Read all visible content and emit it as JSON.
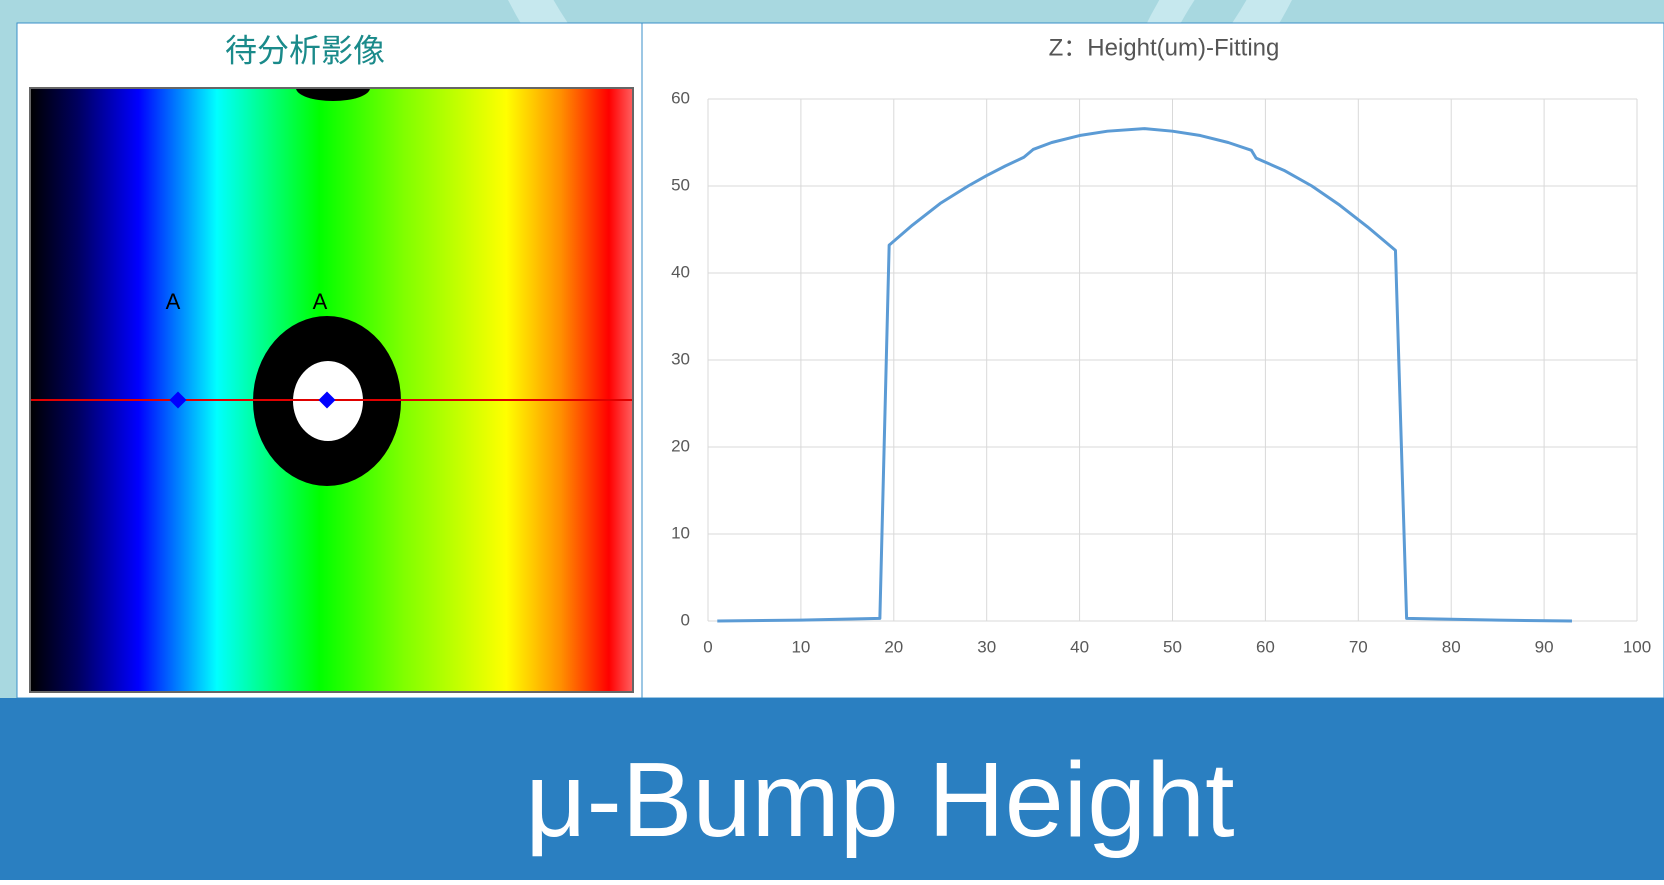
{
  "image_panel": {
    "title": "待分析影像",
    "labels": [
      "A",
      "A"
    ]
  },
  "chart_data": {
    "type": "line",
    "title": "Z：Height(um)-Fitting",
    "x": [
      1,
      10,
      18.5,
      19.5,
      22,
      25,
      28,
      30,
      32,
      34,
      35,
      37,
      40,
      43,
      47,
      50,
      53,
      56,
      58.5,
      59,
      62,
      65,
      68,
      71,
      74,
      75.2,
      80,
      85,
      93
    ],
    "values": [
      0,
      0.1,
      0.3,
      43.2,
      45.5,
      48,
      50,
      51.2,
      52.3,
      53.3,
      54.2,
      55,
      55.8,
      56.3,
      56.6,
      56.3,
      55.8,
      55,
      54.1,
      53.2,
      51.8,
      50,
      47.8,
      45.3,
      42.6,
      0.3,
      0.2,
      0.1,
      0
    ],
    "color": "#5b9bd5",
    "xlim": [
      0,
      100
    ],
    "xticks": [
      0,
      10,
      20,
      30,
      40,
      50,
      60,
      70,
      80,
      90,
      100
    ],
    "ylim": [
      0,
      60
    ],
    "yticks": [
      0,
      10,
      20,
      30,
      40,
      50,
      60
    ],
    "grid": true
  },
  "banner": {
    "text": "μ-Bump Height"
  }
}
